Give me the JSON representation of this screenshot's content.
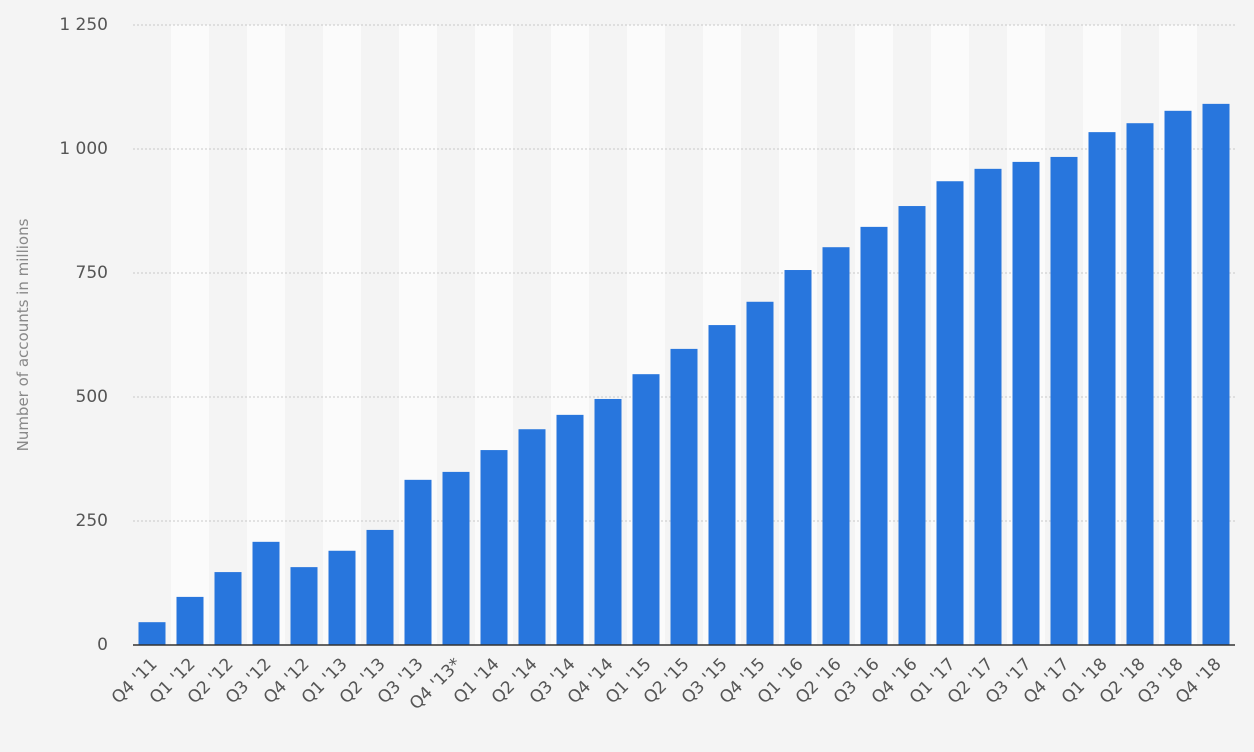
{
  "chart_data": {
    "type": "bar",
    "y_label": "Number of accounts in millions",
    "categories": [
      "Q4 '11",
      "Q1 '12",
      "Q2 '12",
      "Q3 '12",
      "Q4 '12",
      "Q1 '13",
      "Q2 '13",
      "Q3 '13",
      "Q4 '13*",
      "Q1 '14",
      "Q2 '14",
      "Q3 '14",
      "Q4 '14",
      "Q1 '15",
      "Q2 '15",
      "Q3 '15",
      "Q4 '15",
      "Q1 '16",
      "Q2 '16",
      "Q3 '16",
      "Q4 '16",
      "Q1 '17",
      "Q2 '17",
      "Q3 '17",
      "Q4 '17",
      "Q1 '18",
      "Q2 '18",
      "Q3 '18",
      "Q4 '18"
    ],
    "values": [
      46,
      97,
      147,
      208,
      157,
      190,
      232,
      333,
      349,
      393,
      435,
      464,
      496,
      546,
      597,
      645,
      692,
      756,
      802,
      843,
      885,
      935,
      960,
      974,
      984,
      1034,
      1052,
      1077,
      1091
    ],
    "color": "#2876dd",
    "ylim": [
      0,
      1250
    ],
    "yticks": [
      0,
      250,
      500,
      750,
      {
        "value": 1000,
        "label": "1 000"
      },
      {
        "value": 1250,
        "label": "1 250"
      }
    ],
    "grid": true
  }
}
